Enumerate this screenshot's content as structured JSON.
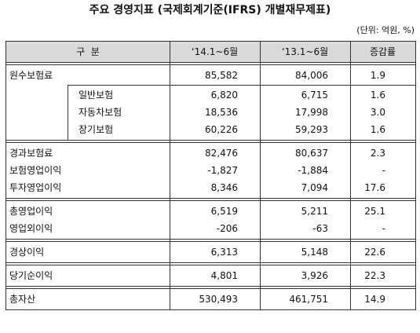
{
  "title": "주요 경영지표 (국제회계기준(IFRS) 개별재무제표)",
  "unit": "(단위: 억원, %)",
  "table": {
    "header": [
      "구  분",
      "‘14.1~6월",
      "‘13.1~6월",
      "증감률"
    ],
    "groups": [
      {
        "rows": [
          [
            "원수보험료",
            "85,582",
            "84,006",
            "1.9"
          ]
        ],
        "sub_rows": [
          [
            "일반보험",
            "6,820",
            "6,715",
            "1.6"
          ],
          [
            "자동차보험",
            "18,536",
            "17,998",
            "3.0"
          ],
          [
            "장기보험",
            "60,226",
            "59,293",
            "1.6"
          ]
        ]
      },
      {
        "rows": [
          [
            "경과보험료",
            "82,476",
            "80,637",
            "2.3"
          ],
          [
            "보험영업이익",
            "-1,827",
            "-1,884",
            "-"
          ],
          [
            "투자영업이익",
            "8,346",
            "7,094",
            "17.6"
          ]
        ]
      },
      {
        "rows": [
          [
            "총영업이익",
            "6,519",
            "5,211",
            "25.1"
          ],
          [
            "영업외이익",
            "-206",
            "-63",
            "-"
          ]
        ]
      },
      {
        "rows": [
          [
            "경상이익",
            "6,313",
            "5,148",
            "22.6"
          ]
        ]
      },
      {
        "rows": [
          [
            "당기순이익",
            "4,801",
            "3,926",
            "22.3"
          ]
        ]
      },
      {
        "rows": [
          [
            "총자산",
            "530,493",
            "461,751",
            "14.9"
          ]
        ]
      }
    ]
  }
}
